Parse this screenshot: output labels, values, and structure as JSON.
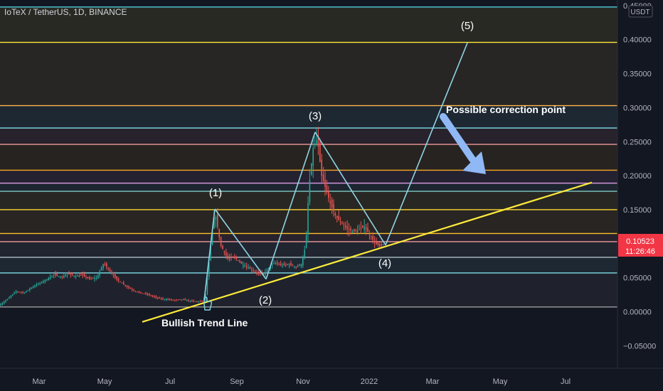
{
  "chart_data": {
    "type": "candlestick",
    "title": "IoTeX / TetherUS, 1D, BINANCE",
    "currency": "USDT",
    "x_ticks": [
      "Mar",
      "May",
      "Jul",
      "Sep",
      "Nov",
      "2022",
      "Mar",
      "May",
      "Jul"
    ],
    "y_ticks": [
      "0.45000",
      "0.40000",
      "0.35000",
      "0.30000",
      "0.25000",
      "0.20000",
      "0.15000",
      "0.10000",
      "0.05000",
      "0.00000",
      "−0.05000"
    ],
    "ylim": [
      -0.07,
      0.45
    ],
    "current_price": "0.10523",
    "countdown": "11:26:46",
    "fib_levels": [
      {
        "price": 0.448,
        "color": "#4dd0e1"
      },
      {
        "price": 0.396,
        "color": "#ffeb3b"
      },
      {
        "price": 0.303,
        "color": "#ffb74d"
      },
      {
        "price": 0.27,
        "color": "#80deea"
      },
      {
        "price": 0.246,
        "color": "#ef9a9a"
      },
      {
        "price": 0.208,
        "color": "#f9a825"
      },
      {
        "price": 0.189,
        "color": "#ce93d8"
      },
      {
        "price": 0.177,
        "color": "#80cbc4"
      },
      {
        "price": 0.15,
        "color": "#fdd835"
      },
      {
        "price": 0.115,
        "color": "#fbc02d"
      },
      {
        "price": 0.103,
        "color": "#ef9a9a"
      },
      {
        "price": 0.08,
        "color": "#b0bec5"
      },
      {
        "price": 0.057,
        "color": "#80deea"
      },
      {
        "price": 0.007,
        "color": "#9e9e9e"
      }
    ],
    "close_path": [
      [
        0,
        0.01
      ],
      [
        10,
        0.018
      ],
      [
        22,
        0.03
      ],
      [
        34,
        0.028
      ],
      [
        46,
        0.037
      ],
      [
        56,
        0.042
      ],
      [
        66,
        0.048
      ],
      [
        76,
        0.055
      ],
      [
        86,
        0.05
      ],
      [
        96,
        0.056
      ],
      [
        106,
        0.052
      ],
      [
        116,
        0.054
      ],
      [
        126,
        0.048
      ],
      [
        136,
        0.05
      ],
      [
        146,
        0.072
      ],
      [
        154,
        0.06
      ],
      [
        164,
        0.048
      ],
      [
        174,
        0.04
      ],
      [
        186,
        0.032
      ],
      [
        196,
        0.028
      ],
      [
        206,
        0.026
      ],
      [
        216,
        0.022
      ],
      [
        226,
        0.019
      ],
      [
        236,
        0.018
      ],
      [
        246,
        0.017
      ],
      [
        256,
        0.018
      ],
      [
        266,
        0.016
      ],
      [
        276,
        0.015
      ],
      [
        288,
        0.016
      ],
      [
        296,
        0.095
      ],
      [
        302,
        0.148
      ],
      [
        310,
        0.098
      ],
      [
        320,
        0.078
      ],
      [
        330,
        0.08
      ],
      [
        340,
        0.07
      ],
      [
        350,
        0.064
      ],
      [
        360,
        0.058
      ],
      [
        370,
        0.055
      ],
      [
        378,
        0.065
      ],
      [
        386,
        0.072
      ],
      [
        396,
        0.068
      ],
      [
        406,
        0.07
      ],
      [
        416,
        0.066
      ],
      [
        424,
        0.07
      ],
      [
        430,
        0.1
      ],
      [
        434,
        0.18
      ],
      [
        440,
        0.24
      ],
      [
        446,
        0.255
      ],
      [
        452,
        0.2
      ],
      [
        458,
        0.18
      ],
      [
        464,
        0.16
      ],
      [
        472,
        0.14
      ],
      [
        480,
        0.13
      ],
      [
        488,
        0.122
      ],
      [
        496,
        0.118
      ],
      [
        504,
        0.12
      ],
      [
        512,
        0.126
      ],
      [
        520,
        0.112
      ],
      [
        528,
        0.1
      ],
      [
        534,
        0.096
      ],
      [
        540,
        0.1
      ]
    ],
    "trend_line": {
      "label": "Bullish Trend Line",
      "from": {
        "x": 200,
        "price": -0.015
      },
      "to": {
        "x": 832,
        "price": 0.19
      }
    },
    "wave": {
      "points": [
        {
          "x": 287,
          "price": 0.017
        },
        {
          "x": 302,
          "price": 0.151
        },
        {
          "x": 374,
          "price": 0.048
        },
        {
          "x": 443,
          "price": 0.264
        },
        {
          "x": 542,
          "price": 0.098
        },
        {
          "x": 657,
          "price": 0.395
        }
      ],
      "labels": [
        "(1)",
        "(2)",
        "(3)",
        "(4)",
        "(5)"
      ]
    },
    "annotation": "Possible correction point"
  }
}
